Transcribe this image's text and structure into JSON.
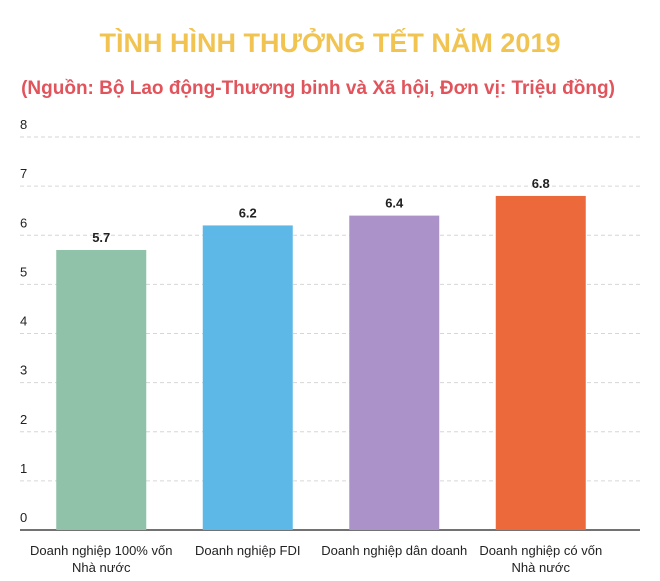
{
  "chart_data": {
    "type": "bar",
    "title": "TÌNH HÌNH THƯỞNG TẾT NĂM 2019",
    "subtitle": "(Nguồn: Bộ Lao động-Thương binh và Xã hội, Đơn vị: Triệu đồng)",
    "categories": [
      "Doanh nghiệp 100% vốn Nhà nước",
      "Doanh nghiệp FDI",
      "Doanh nghiệp dân doanh",
      "Doanh nghiệp có vốn Nhà nước"
    ],
    "values": [
      5.7,
      6.2,
      6.4,
      6.8
    ],
    "colors": [
      "#8fc2a8",
      "#5db7e7",
      "#ab93c9",
      "#eb693a"
    ],
    "ylim": [
      0,
      8
    ],
    "yticks": [
      0,
      1,
      2,
      3,
      4,
      5,
      6,
      7,
      8
    ],
    "grid": true
  }
}
